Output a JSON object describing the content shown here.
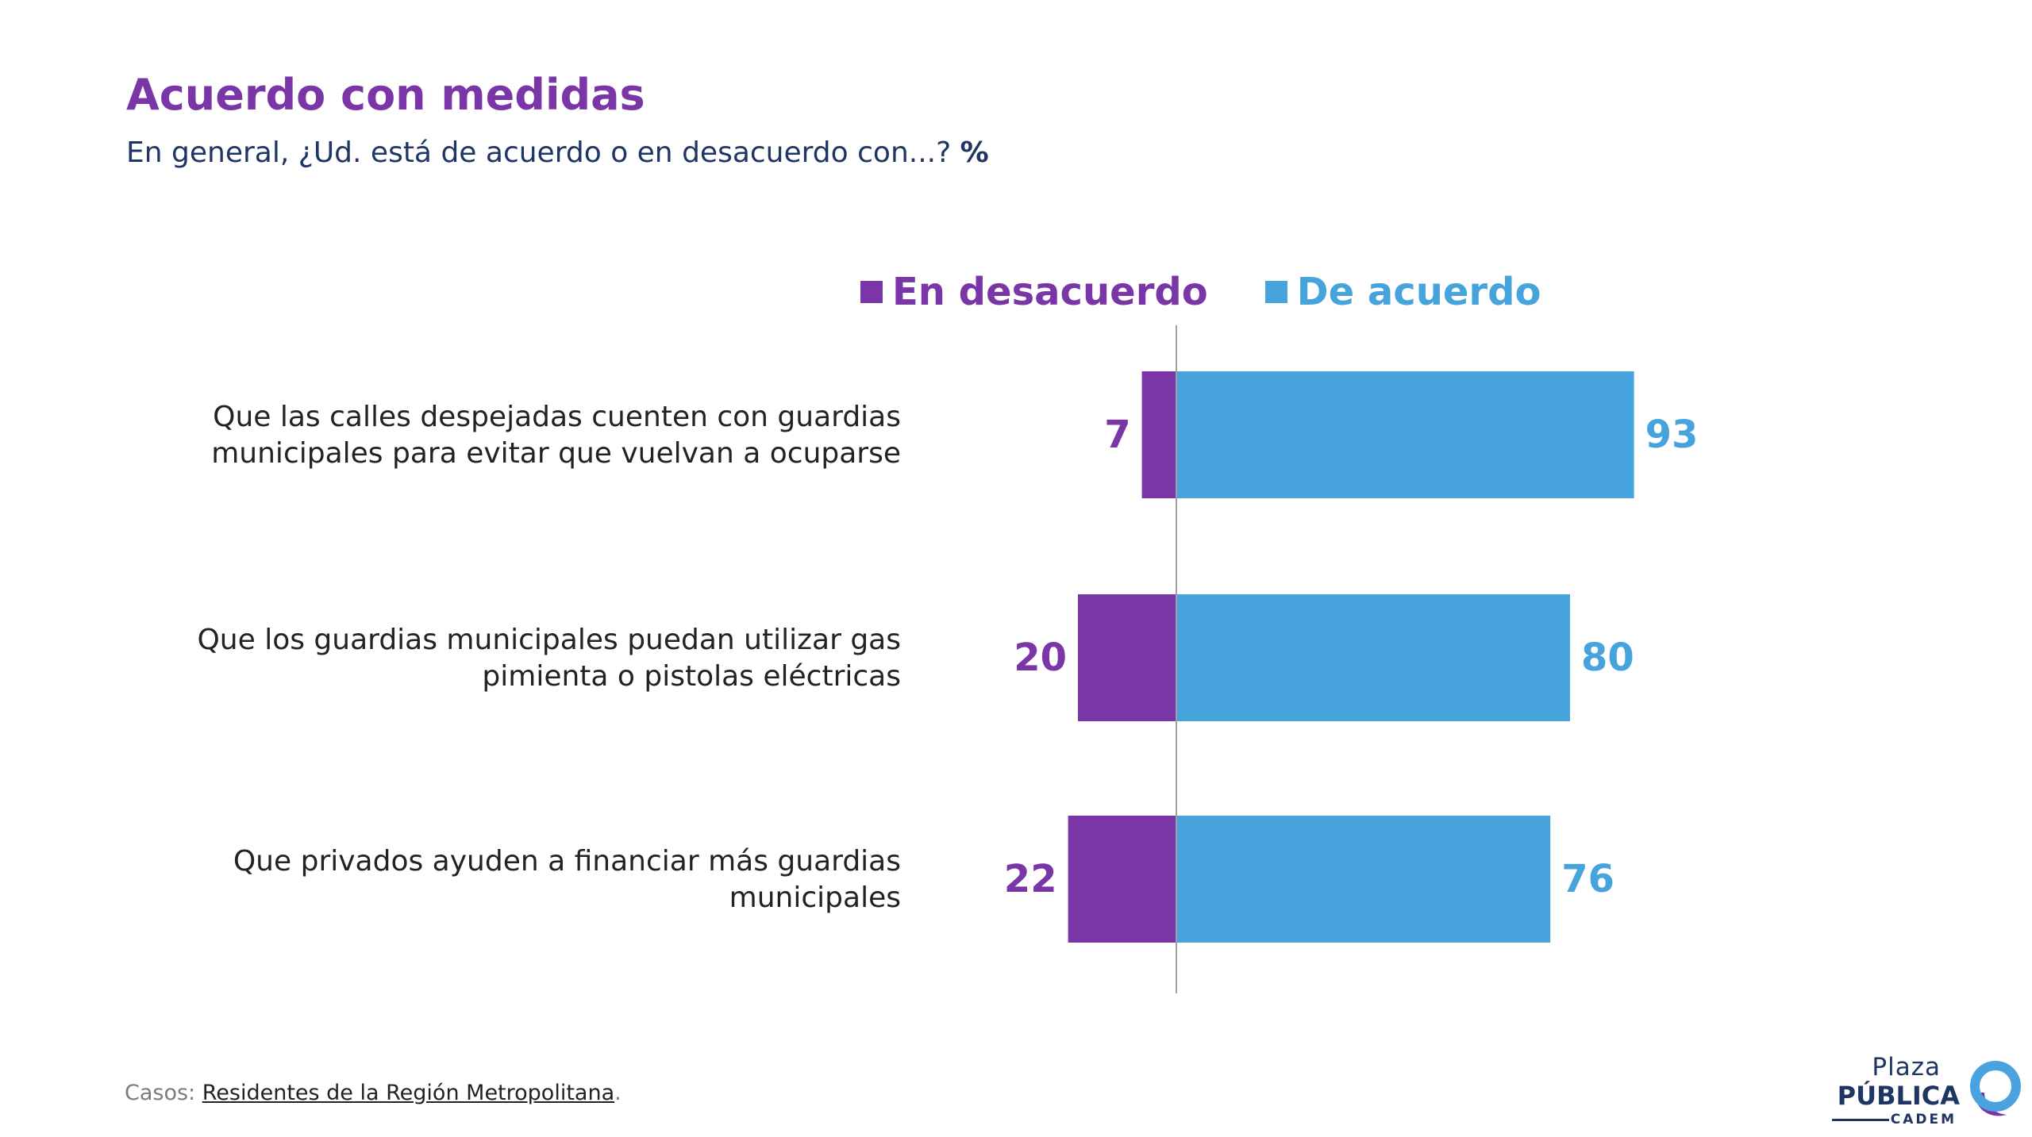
{
  "title": "Acuerdo con medidas",
  "subtitle": {
    "text": "En general, ¿Ud. está de acuerdo o en desacuerdo con...? ",
    "unit": "%"
  },
  "footer": {
    "label": "Casos: ",
    "source": "Residentes de la Región Metropolitana",
    "end": "."
  },
  "logo": {
    "line1": "Plaza",
    "line2": "PÚBLICA",
    "line3": "CADEM",
    "colors": {
      "text": "#1f3563",
      "ring": "#4aa3df",
      "accent": "#7a36a6"
    }
  },
  "colors": {
    "desacuerdo": "#7a36a6",
    "acuerdo": "#47a3dc",
    "axis": "#a0a0a0",
    "category_text": "#222222"
  },
  "chart_data": {
    "type": "bar",
    "orientation": "horizontal-diverging",
    "unit": "%",
    "legend": {
      "position": "top-center",
      "show": true
    },
    "categories": [
      [
        "Que las calles despejadas cuenten con guardias",
        "municipales para evitar que vuelvan a ocuparse"
      ],
      [
        "Que los guardias municipales puedan utilizar gas",
        "pimienta o pistolas eléctricas"
      ],
      [
        "Que privados ayuden a financiar más guardias",
        "municipales"
      ]
    ],
    "series": [
      {
        "name": "En desacuerdo",
        "values": [
          7,
          20,
          22
        ],
        "direction": "left"
      },
      {
        "name": "De acuerdo",
        "values": [
          93,
          80,
          76
        ],
        "direction": "right"
      }
    ],
    "grid": false
  }
}
